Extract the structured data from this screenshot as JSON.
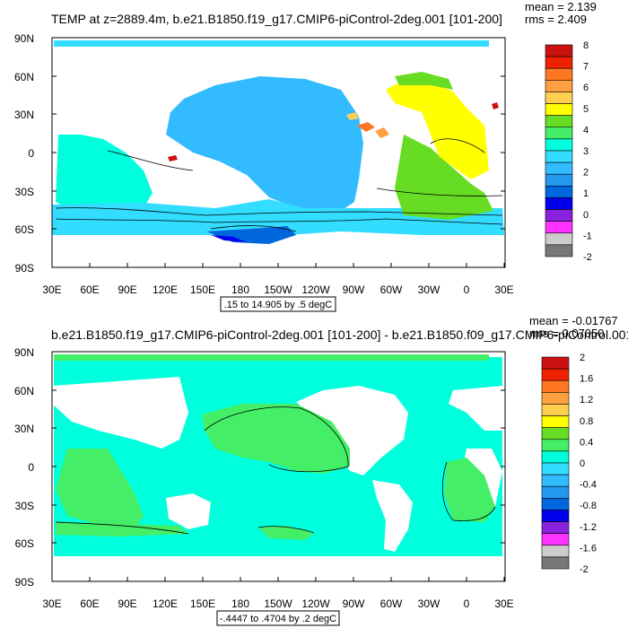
{
  "panels": [
    {
      "title": "TEMP at z=2889.4m, b.e21.B1850.f19_g17.CMIP6-piControl-2deg.001 [101-200]",
      "mean_label": "mean = 2.139",
      "rms_label": "rms = 2.409",
      "contour_info": ".15 to 14.905 by .5 degC",
      "lat_ticks": [
        "90N",
        "60N",
        "30N",
        "0",
        "30S",
        "60S",
        "90S"
      ],
      "lon_ticks": [
        "30E",
        "60E",
        "90E",
        "120E",
        "150E",
        "180",
        "150W",
        "120W",
        "90W",
        "60W",
        "30W",
        "0",
        "30E"
      ],
      "colorbar": {
        "labels": [
          "8",
          "7",
          "6",
          "5",
          "4",
          "3",
          "2",
          "1",
          "0",
          "-1",
          "-2"
        ],
        "colors": [
          "#cc1111",
          "#ee2200",
          "#ff7722",
          "#ffa040",
          "#ffd050",
          "#ffff00",
          "#66dd22",
          "#44ee66",
          "#00ffdd",
          "#33ddff",
          "#33bbff",
          "#2299ee",
          "#0066dd",
          "#0000ee",
          "#8822dd",
          "#ff33ff",
          "#cccccc",
          "#777777"
        ]
      }
    },
    {
      "title": "b.e21.B1850.f19_g17.CMIP6-piControl-2deg.001 [101-200] - b.e21.B1850.f09_g17.CMIP6-piControl.001",
      "mean_label": "mean = -0.01767",
      "rms_label": "rms = 0.07050",
      "contour_info": "-.4447 to .4704 by .2 degC",
      "lat_ticks": [
        "90N",
        "60N",
        "30N",
        "0",
        "30S",
        "60S",
        "90S"
      ],
      "lon_ticks": [
        "30E",
        "60E",
        "90E",
        "120E",
        "150E",
        "180",
        "150W",
        "120W",
        "90W",
        "60W",
        "30W",
        "0",
        "30E"
      ],
      "colorbar": {
        "labels": [
          "2",
          "1.6",
          "1.2",
          "0.8",
          "0.4",
          "0",
          "-0.4",
          "-0.8",
          "-1.2",
          "-1.6",
          "-2"
        ],
        "colors": [
          "#cc1111",
          "#ee2200",
          "#ff7722",
          "#ffa040",
          "#ffd050",
          "#ffff00",
          "#66dd22",
          "#44ee66",
          "#00ffdd",
          "#33ddff",
          "#33bbff",
          "#2299ee",
          "#0066dd",
          "#0000ee",
          "#8822dd",
          "#ff33ff",
          "#cccccc",
          "#777777"
        ]
      }
    }
  ],
  "palette": {
    "land": "#ffffff",
    "panel1_fields": [
      "#33bbff",
      "#00ffdd",
      "#33ddff",
      "#ffff00",
      "#66dd22",
      "#ffd050",
      "#ff7722",
      "#0066dd",
      "#0000ee",
      "#cc1111"
    ],
    "panel2_fields": [
      "#00ffdd",
      "#44ee66",
      "#ffffff"
    ]
  }
}
